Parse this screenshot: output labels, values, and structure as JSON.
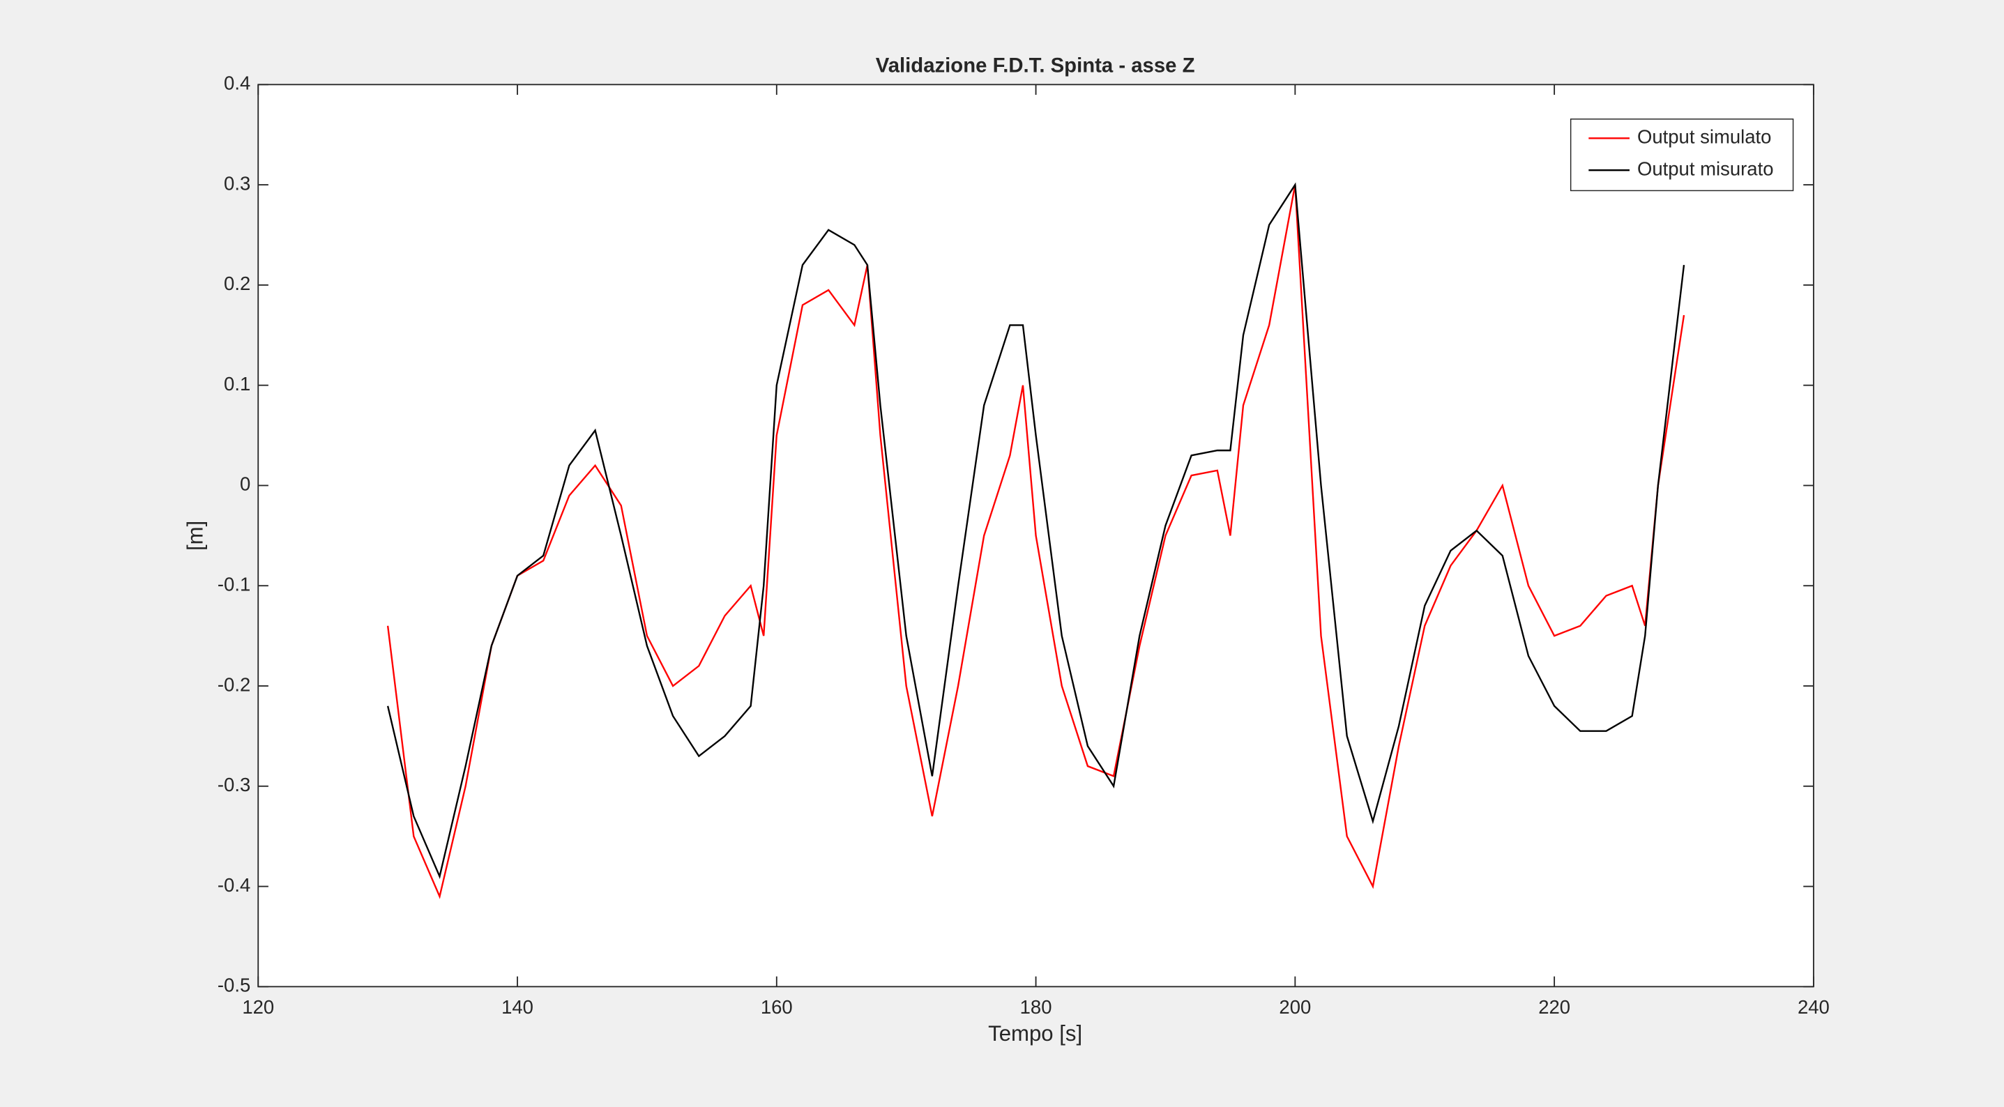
{
  "chart_data": {
    "type": "line",
    "title": "Validazione F.D.T. Spinta - asse Z",
    "xlabel": "Tempo [s]",
    "ylabel": "[m]",
    "x": [
      130,
      132,
      134,
      136,
      138,
      140,
      142,
      144,
      146,
      148,
      150,
      152,
      154,
      156,
      158,
      159,
      160,
      162,
      164,
      166,
      167,
      168,
      170,
      172,
      174,
      176,
      178,
      179,
      180,
      182,
      184,
      186,
      188,
      190,
      192,
      194,
      195,
      196,
      198,
      200,
      202,
      204,
      206,
      208,
      210,
      212,
      214,
      216,
      218,
      220,
      222,
      224,
      226,
      227,
      228,
      230
    ],
    "series": [
      {
        "name": "Output simulato",
        "color": "#ff0000",
        "values": [
          -0.14,
          -0.35,
          -0.41,
          -0.3,
          -0.16,
          -0.09,
          -0.075,
          -0.01,
          0.02,
          -0.02,
          -0.15,
          -0.2,
          -0.18,
          -0.13,
          -0.1,
          -0.15,
          0.05,
          0.18,
          0.195,
          0.16,
          0.22,
          0.05,
          -0.2,
          -0.33,
          -0.2,
          -0.05,
          0.03,
          0.1,
          -0.05,
          -0.2,
          -0.28,
          -0.29,
          -0.16,
          -0.05,
          0.01,
          0.015,
          -0.05,
          0.08,
          0.16,
          0.3,
          -0.15,
          -0.35,
          -0.4,
          -0.26,
          -0.14,
          -0.08,
          -0.045,
          0.0,
          -0.1,
          -0.15,
          -0.14,
          -0.11,
          -0.1,
          -0.14,
          0.0,
          0.17
        ]
      },
      {
        "name": "Output misurato",
        "color": "#000000",
        "values": [
          -0.22,
          -0.33,
          -0.39,
          -0.28,
          -0.16,
          -0.09,
          -0.07,
          0.02,
          0.055,
          -0.05,
          -0.16,
          -0.23,
          -0.27,
          -0.25,
          -0.22,
          -0.1,
          0.1,
          0.22,
          0.255,
          0.24,
          0.22,
          0.08,
          -0.15,
          -0.29,
          -0.1,
          0.08,
          0.16,
          0.16,
          0.05,
          -0.15,
          -0.26,
          -0.3,
          -0.15,
          -0.04,
          0.03,
          0.035,
          0.035,
          0.15,
          0.26,
          0.3,
          0.0,
          -0.25,
          -0.335,
          -0.24,
          -0.12,
          -0.065,
          -0.045,
          -0.07,
          -0.17,
          -0.22,
          -0.245,
          -0.245,
          -0.23,
          -0.15,
          0.0,
          0.22
        ]
      }
    ],
    "xlim": [
      120,
      240
    ],
    "xticks": [
      120,
      140,
      160,
      180,
      200,
      220,
      240
    ],
    "ylim": [
      -0.5,
      0.4
    ],
    "yticks": [
      -0.5,
      -0.4,
      -0.3,
      -0.2,
      -0.1,
      0,
      0.1,
      0.2,
      0.3,
      0.4
    ],
    "legend": "upper right",
    "grid": false
  }
}
